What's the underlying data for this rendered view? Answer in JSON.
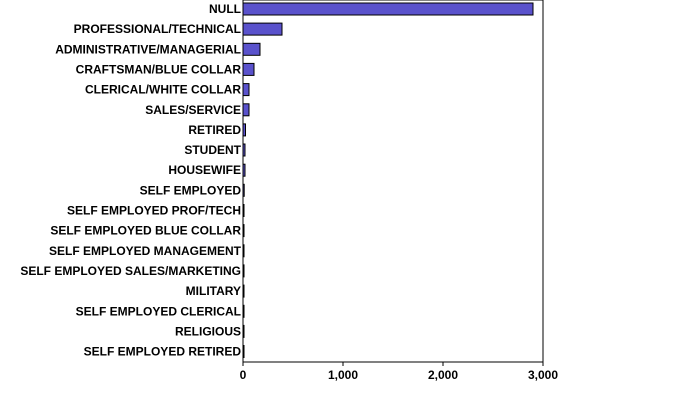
{
  "chart_data": {
    "type": "bar",
    "orientation": "horizontal",
    "categories": [
      "NULL",
      "PROFESSIONAL/TECHNICAL",
      "ADMINISTRATIVE/MANAGERIAL",
      "CRAFTSMAN/BLUE COLLAR",
      "CLERICAL/WHITE COLLAR",
      "SALES/SERVICE",
      "RETIRED",
      "STUDENT",
      "HOUSEWIFE",
      "SELF EMPLOYED",
      "SELF EMPLOYED PROF/TECH",
      "SELF EMPLOYED BLUE COLLAR",
      "SELF EMPLOYED MANAGEMENT",
      "SELF EMPLOYED SALES/MARKETING",
      "MILITARY",
      "SELF EMPLOYED CLERICAL",
      "RELIGIOUS",
      "SELF EMPLOYED RETIRED"
    ],
    "values": [
      2900,
      390,
      170,
      110,
      60,
      60,
      25,
      20,
      20,
      12,
      10,
      8,
      8,
      5,
      3,
      2,
      1,
      1
    ],
    "xlim": [
      0,
      3000
    ],
    "xticks": [
      0,
      1000,
      2000,
      3000
    ],
    "xtick_labels": [
      "0",
      "1,000",
      "2,000",
      "3,000"
    ],
    "title": "",
    "xlabel": "",
    "ylabel": "",
    "grid": false,
    "legend": "none",
    "bar_color": "#5a52cc",
    "bar_edge_color": "#000000"
  }
}
